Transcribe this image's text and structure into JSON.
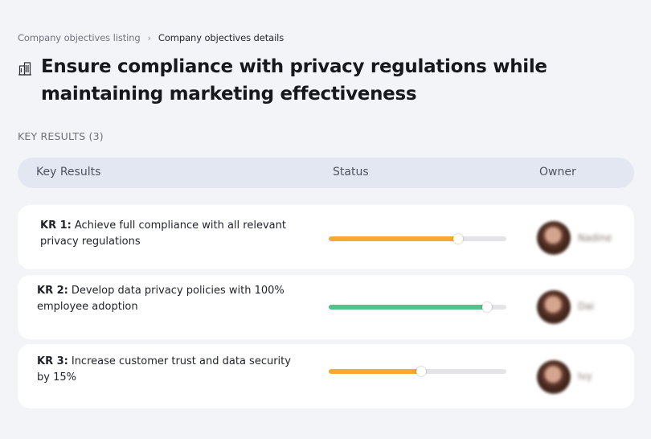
{
  "breadcrumb": {
    "parent": "Company objectives listing",
    "separator": "›",
    "current": "Company objectives details"
  },
  "title": {
    "icon": "building-icon",
    "text": "Ensure compliance with privacy regulations while maintaining marketing effectiveness"
  },
  "section": {
    "label": "KEY RESULTS (3)"
  },
  "table": {
    "headers": {
      "key_results": "Key Results",
      "status": "Status",
      "owner": "Owner"
    },
    "rows": [
      {
        "prefix": "KR 1:",
        "text": "Achieve full compliance with all relevant privacy regulations",
        "progress": 0.73,
        "progress_color": "#f7a933",
        "owner": "Nadine"
      },
      {
        "prefix": "KR 2:",
        "text": "Develop data privacy policies with 100% employee adoption",
        "progress": 0.89,
        "progress_color": "#55c28b",
        "owner": "Dai"
      },
      {
        "prefix": "KR 3:",
        "text": "Increase customer trust and data security by 15%",
        "progress": 0.52,
        "progress_color": "#f7a933",
        "owner": "Ivy"
      }
    ]
  },
  "colors": {
    "background": "#f3f4f7",
    "header_bg": "#e2e7f1",
    "track": "#e4e4e6"
  }
}
